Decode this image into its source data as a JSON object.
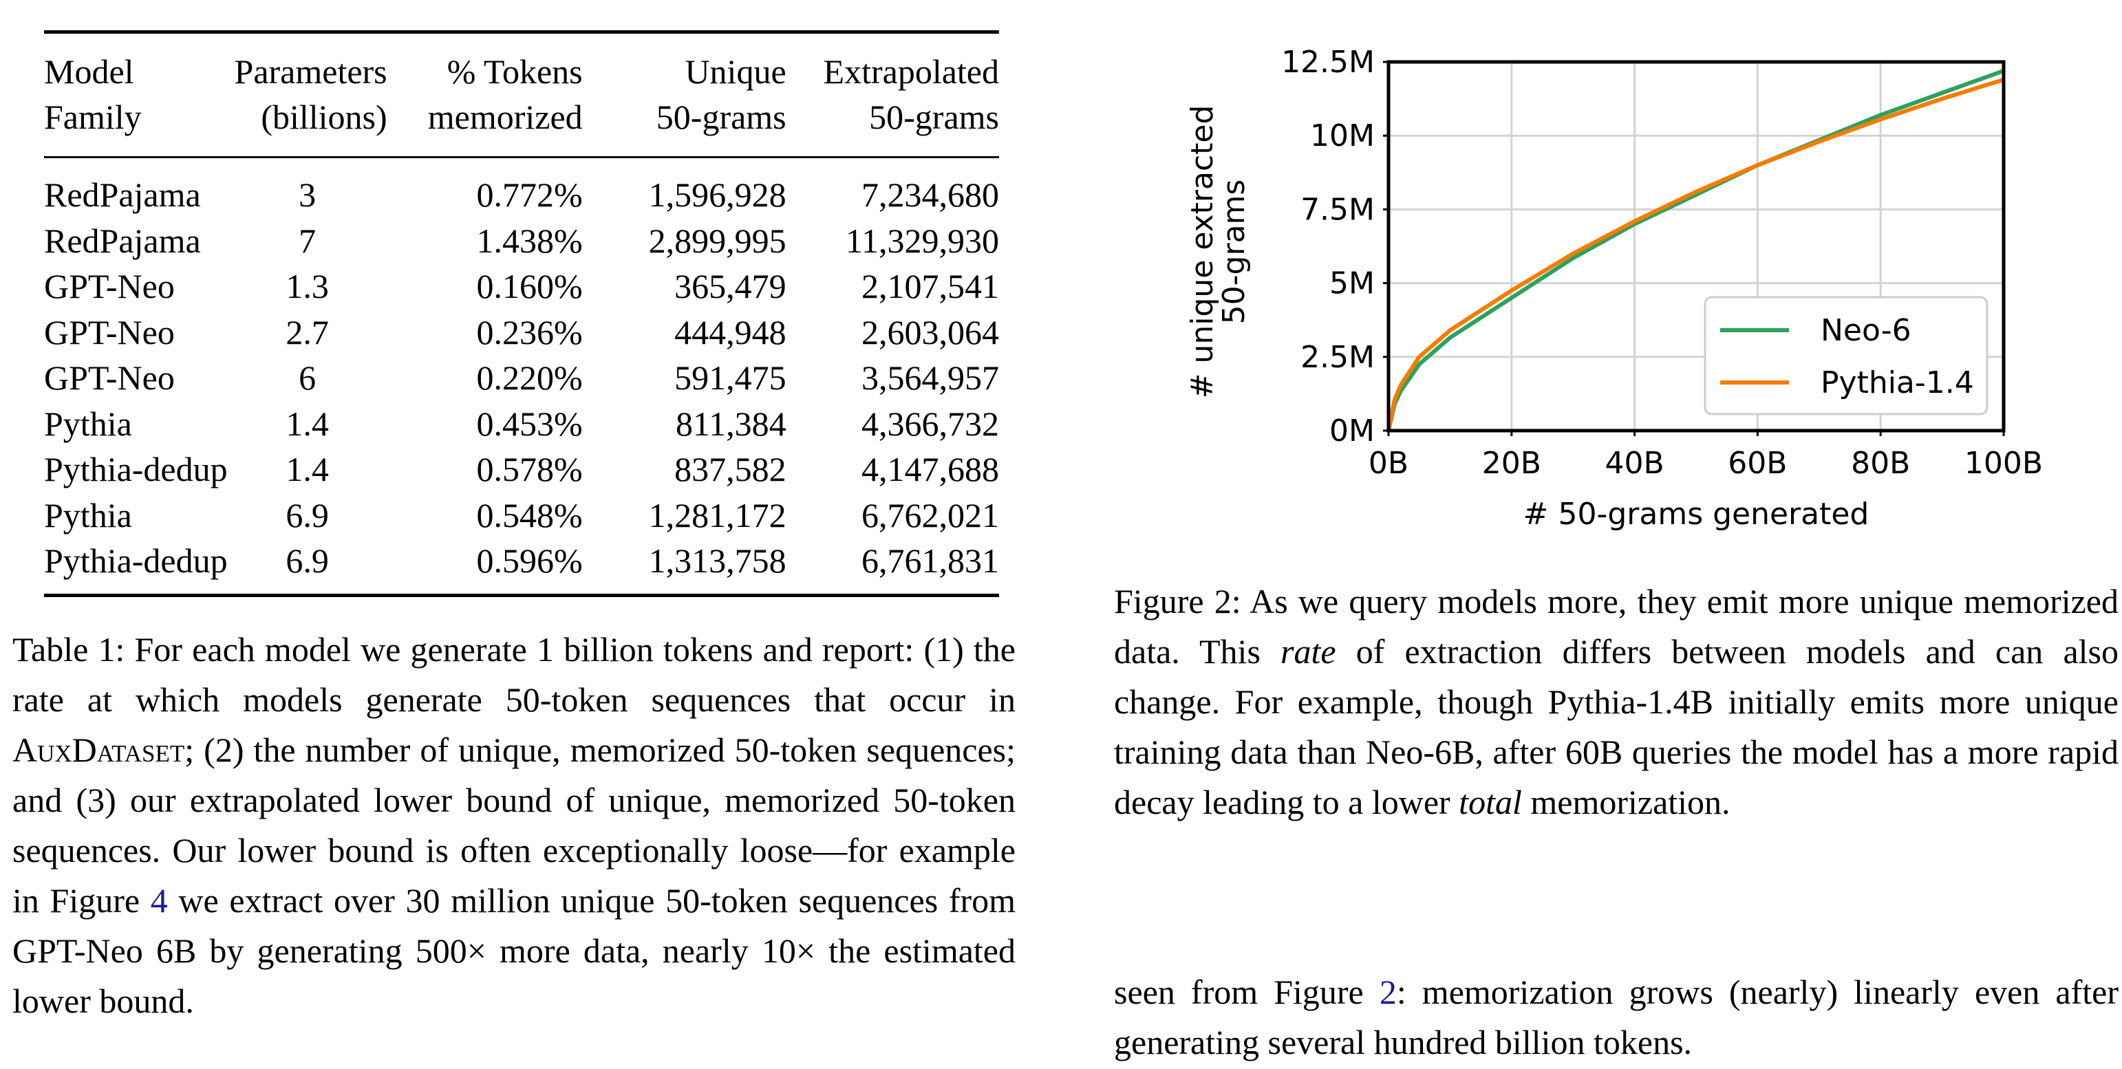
{
  "table": {
    "header_line1": [
      "Model",
      "Parameters",
      "% Tokens",
      "Unique",
      "Extrapolated"
    ],
    "header_line2": [
      "Family",
      "(billions)",
      "memorized",
      "50-grams",
      "50-grams"
    ],
    "rows": [
      [
        "RedPajama",
        "3",
        "0.772%",
        "1,596,928",
        "7,234,680"
      ],
      [
        "RedPajama",
        "7",
        "1.438%",
        "2,899,995",
        "11,329,930"
      ],
      [
        "GPT-Neo",
        "1.3",
        "0.160%",
        "365,479",
        "2,107,541"
      ],
      [
        "GPT-Neo",
        "2.7",
        "0.236%",
        "444,948",
        "2,603,064"
      ],
      [
        "GPT-Neo",
        "6",
        "0.220%",
        "591,475",
        "3,564,957"
      ],
      [
        "Pythia",
        "1.4",
        "0.453%",
        "811,384",
        "4,366,732"
      ],
      [
        "Pythia-dedup",
        "1.4",
        "0.578%",
        "837,582",
        "4,147,688"
      ],
      [
        "Pythia",
        "6.9",
        "0.548%",
        "1,281,172",
        "6,762,021"
      ],
      [
        "Pythia-dedup",
        "6.9",
        "0.596%",
        "1,313,758",
        "6,761,831"
      ]
    ]
  },
  "table_caption": {
    "prefix": "Table 1: For each model we generate 1 billion tokens and report: (1) the rate at which models generate 50-token sequences that occur in ",
    "dataset_name": "AuxDataset",
    "middle": "; (2) the number of unique, memorized 50-token sequences; and (3) our extrapolated lower bound of unique, memorized 50-token sequences. Our lower bound is often exceptionally loose—for example in Figure ",
    "figure_ref": "4",
    "suffix": " we extract over 30 million unique 50-token sequences from GPT-Neo 6B by generating 500× more data, nearly 10× the estimated lower bound."
  },
  "figure_caption": {
    "part1": "Figure 2: As we query models more, they emit more unique memorized data. This ",
    "em1": "rate",
    "part2": " of extraction differs between models and can also change. For example, though Pythia-1.4B initially emits more unique training data than Neo-6B, after 60B queries the model has a more rapid decay leading to a lower ",
    "em2": "total",
    "part3": " memorization."
  },
  "body_text": {
    "prefix": "seen from Figure ",
    "figure_ref": "2",
    "suffix": ": memorization grows (nearly) linearly even after generating several hundred billion tokens."
  },
  "chart_data": {
    "type": "line",
    "xlabel": "# 50-grams generated",
    "ylabel_line1": "# unique extracted",
    "ylabel_line2": "50-grams",
    "x_ticks": [
      "0B",
      "20B",
      "40B",
      "60B",
      "80B",
      "100B"
    ],
    "y_ticks": [
      "0M",
      "2.5M",
      "5M",
      "7.5M",
      "10M",
      "12.5M"
    ],
    "xlim": [
      0,
      100
    ],
    "ylim": [
      0,
      12.5
    ],
    "x_unit": "billions",
    "y_unit": "millions",
    "grid": true,
    "legend_position": "lower-right",
    "series": [
      {
        "name": "Neo-6",
        "color": "#2ca25f",
        "x": [
          0,
          1,
          2,
          5,
          10,
          20,
          30,
          40,
          50,
          60,
          70,
          80,
          90,
          100
        ],
        "y": [
          0,
          0.9,
          1.35,
          2.25,
          3.15,
          4.5,
          5.85,
          7.0,
          8.0,
          9.0,
          9.85,
          10.7,
          11.45,
          12.2
        ]
      },
      {
        "name": "Pythia-1.4",
        "color": "#f57c00",
        "x": [
          0,
          1,
          2,
          5,
          10,
          20,
          30,
          40,
          50,
          60,
          70,
          80,
          90,
          100
        ],
        "y": [
          0,
          1.05,
          1.55,
          2.5,
          3.4,
          4.75,
          6.0,
          7.1,
          8.1,
          9.0,
          9.8,
          10.55,
          11.25,
          11.9
        ]
      }
    ]
  }
}
